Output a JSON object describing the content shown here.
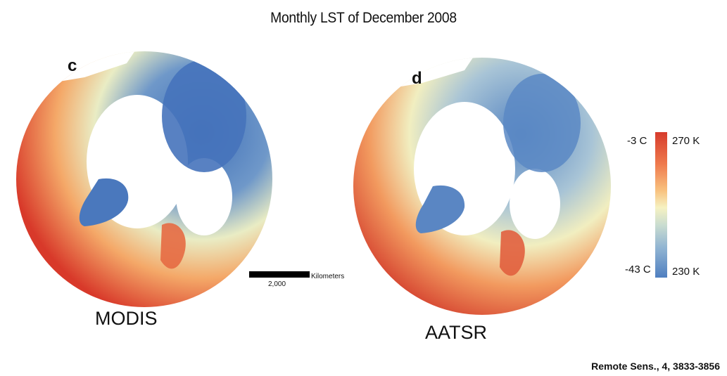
{
  "title": "Monthly LST of  December 2008",
  "panels": [
    {
      "letter": "c",
      "sensor": "MODIS"
    },
    {
      "letter": "d",
      "sensor": "AATSR"
    }
  ],
  "scale_bar": {
    "value": "2,000",
    "unit": "Kilometers"
  },
  "colorbar": {
    "top_celsius": "-3 C",
    "top_kelvin": "270 K",
    "bottom_celsius": "-43 C",
    "bottom_kelvin": "230 K",
    "colors": [
      "#d63b2c",
      "#ef7a4d",
      "#f8c17e",
      "#f6f2c2",
      "#c9dcd0",
      "#8fb3d2",
      "#4f7fc0"
    ]
  },
  "citation": "Remote Sens., 4, 3833-3856"
}
